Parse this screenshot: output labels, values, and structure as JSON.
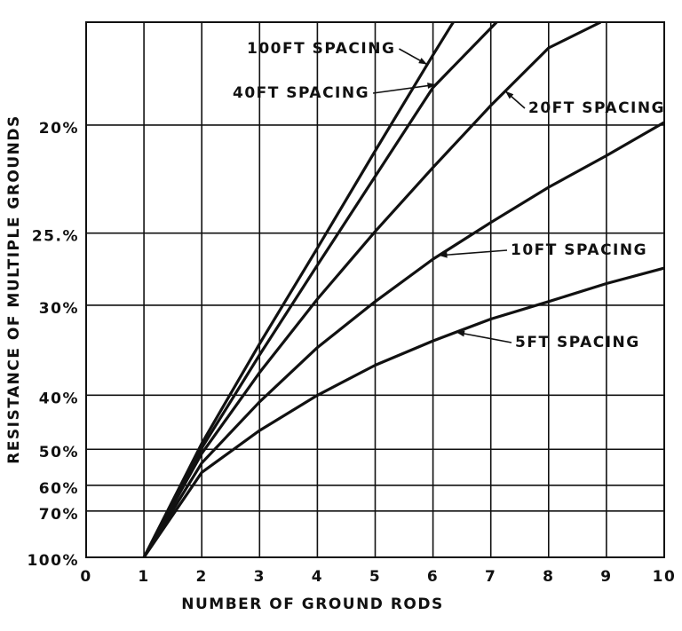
{
  "chart_data": {
    "type": "line",
    "xlabel": "NUMBER OF GROUND RODS",
    "ylabel": "RESISTANCE OF MULTIPLE GROUNDS",
    "xlim": [
      0,
      10
    ],
    "xticks": [
      0,
      1,
      2,
      3,
      4,
      5,
      6,
      7,
      8,
      9,
      10
    ],
    "ylim": [
      100,
      16.8
    ],
    "yscale": "reciprocal",
    "yticks": [
      {
        "value": 20,
        "label": "20%"
      },
      {
        "value": 25,
        "label": "25.%"
      },
      {
        "value": 30,
        "label": "30%"
      },
      {
        "value": 40,
        "label": "40%"
      },
      {
        "value": 50,
        "label": "50%"
      },
      {
        "value": 60,
        "label": "60%"
      },
      {
        "value": 70,
        "label": "70%"
      },
      {
        "value": 100,
        "label": "100%"
      }
    ],
    "grid": true,
    "series": [
      {
        "name": "100FT SPACING",
        "color": "#111111",
        "x": [
          1,
          2,
          3,
          4,
          5,
          6,
          6.35
        ],
        "values": [
          100,
          48.7,
          33.6,
          25.9,
          21,
          17.7,
          16.8
        ]
      },
      {
        "name": "40FT SPACING",
        "color": "#111111",
        "x": [
          1,
          2,
          3,
          4,
          5,
          6,
          7.1
        ],
        "values": [
          100,
          49.7,
          34.8,
          27,
          22.1,
          18.7,
          16.8
        ]
      },
      {
        "name": "20FT SPACING",
        "color": "#111111",
        "x": [
          1,
          2,
          3,
          4,
          5,
          6,
          7,
          8,
          8.9
        ],
        "values": [
          100,
          51,
          36.9,
          29.5,
          24.9,
          21.7,
          19.3,
          17.5,
          16.8
        ]
      },
      {
        "name": "10FT SPACING",
        "color": "#111111",
        "x": [
          1,
          2,
          3,
          4,
          5,
          6,
          7,
          8,
          9,
          10
        ],
        "values": [
          100,
          53.4,
          41,
          34,
          29.7,
          26.6,
          24.4,
          22.6,
          21.2,
          19.9
        ]
      },
      {
        "name": "5FT SPACING",
        "color": "#111111",
        "x": [
          1,
          2,
          3,
          4,
          5,
          6,
          7,
          8,
          9,
          10
        ],
        "values": [
          100,
          56,
          46,
          40,
          36,
          33.3,
          31.2,
          29.7,
          28.3,
          27.2
        ]
      }
    ]
  }
}
